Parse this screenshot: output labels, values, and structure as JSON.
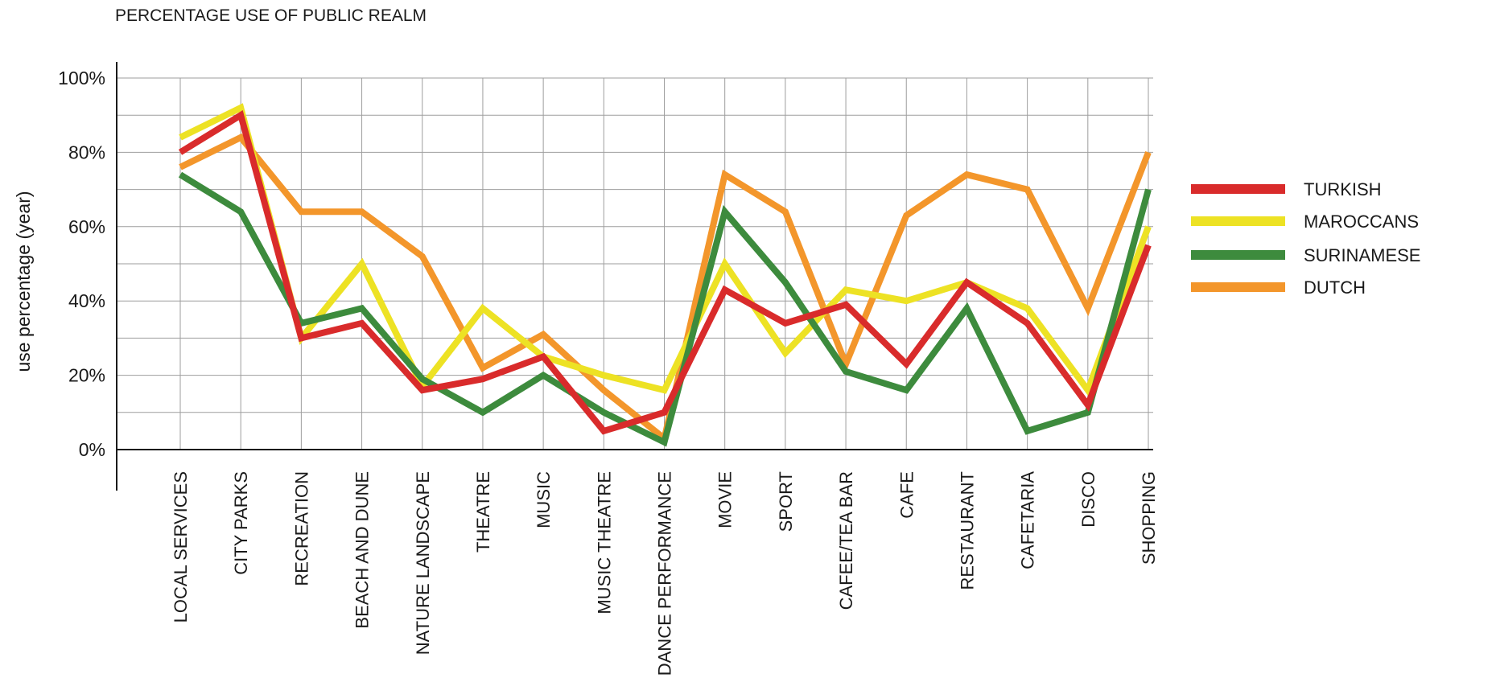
{
  "chart_data": {
    "type": "line",
    "title": "PERCENTAGE USE OF PUBLIC REALM",
    "xlabel": "",
    "ylabel": "use percentage (year)",
    "ylim": [
      0,
      100
    ],
    "yticks": [
      0,
      20,
      40,
      60,
      80,
      100
    ],
    "ytick_labels": [
      "0%",
      "20%",
      "40%",
      "60%",
      "80%",
      "100%"
    ],
    "grid": true,
    "legend_position": "right",
    "categories": [
      "LOCAL SERVICES",
      "CITY PARKS",
      "RECREATION",
      "BEACH AND DUNE",
      "NATURE LANDSCAPE",
      "THEATRE",
      "MUSIC",
      "MUSIC THEATRE",
      "DANCE PERFORMANCE",
      "MOVIE",
      "SPORT",
      "CAFEE/TEA BAR",
      "CAFE",
      "RESTAURANT",
      "CAFETARIA",
      "DISCO",
      "SHOPPING"
    ],
    "series": [
      {
        "name": "TURKISH",
        "color": "#d92b2b",
        "values": [
          80,
          90,
          30,
          34,
          16,
          19,
          25,
          5,
          10,
          43,
          34,
          39,
          23,
          45,
          34,
          12,
          55
        ]
      },
      {
        "name": "MAROCCANS",
        "color": "#ede224",
        "values": [
          84,
          92,
          30,
          50,
          17,
          38,
          25,
          20,
          16,
          50,
          26,
          43,
          40,
          45,
          38,
          16,
          60
        ]
      },
      {
        "name": "SURINAMESE",
        "color": "#3d8b3d",
        "values": [
          74,
          64,
          34,
          38,
          19,
          10,
          20,
          10,
          2,
          64,
          45,
          21,
          16,
          38,
          5,
          10,
          70
        ]
      },
      {
        "name": "DUTCH",
        "color": "#f3962b",
        "values": [
          76,
          84,
          64,
          64,
          52,
          22,
          31,
          16,
          3,
          74,
          64,
          23,
          63,
          74,
          70,
          38,
          80
        ]
      }
    ]
  }
}
